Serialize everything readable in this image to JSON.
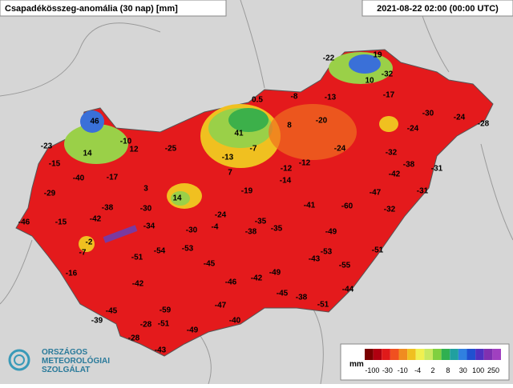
{
  "header": {
    "title": "Csapadékösszeg-anomália (30 nap) [mm]",
    "date": "2021-08-22 02:00 (00:00 UTC)"
  },
  "stations": [
    -22,
    19,
    -32,
    10,
    -17,
    0.5,
    -8,
    -13,
    8,
    -20,
    -30,
    -24,
    -28,
    -24,
    46,
    41,
    -7,
    -24,
    -23,
    -10,
    12,
    -25,
    -13,
    -32,
    -15,
    14,
    7,
    -12,
    -12,
    -38,
    -31,
    -40,
    -17,
    -14,
    -42,
    3,
    -19,
    -47,
    -31,
    -29,
    14,
    -41,
    -60,
    -32,
    -38,
    -30,
    -24,
    -46,
    -15,
    -42,
    -34,
    -35,
    -35,
    -30,
    -4,
    -38,
    -49,
    -2,
    -7,
    -54,
    -53,
    -53,
    -51,
    -51,
    -43,
    -55,
    -45,
    -16,
    -49,
    -46,
    -42,
    -42,
    -44,
    -45,
    -38,
    -47,
    -51,
    -45,
    -59,
    -39,
    -40,
    -28,
    -51,
    -49,
    -28,
    -43
  ],
  "legend": {
    "unit": "mm",
    "labels": [
      "-100",
      "-30",
      "-10",
      "-4",
      "2",
      "8",
      "30",
      "100",
      "250"
    ]
  },
  "logo": {
    "lines": [
      "ORSZÁGOS",
      "METEOROLÓGIAI",
      "SZOLGÁLAT"
    ]
  }
}
